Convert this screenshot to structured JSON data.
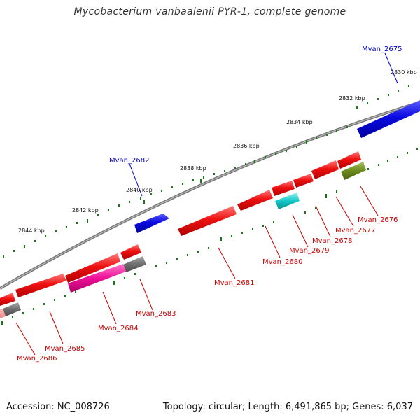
{
  "title": "Mycobacterium vanbaalenii PYR-1, complete genome",
  "footer": {
    "accession": "Accession: NC_008726",
    "topology": "Topology: circular; Length: 6,491,865 bp; Genes: 6,037"
  },
  "colors": {
    "backbone": "#8a8a8a",
    "tick": "#1a7a1a",
    "red": "#ee1111",
    "blue": "#0a0ae0",
    "cyan": "#14c8c8",
    "olive": "#6b8a1e",
    "gray": "#6e6e6e",
    "pink": "#ee1199",
    "label_red": "#cc0000",
    "label_blue": "#0000cc"
  },
  "kbp_labels": [
    "2830 kbp",
    "2832 kbp",
    "2834 kbp",
    "2836 kbp",
    "2838 kbp",
    "2840 kbp",
    "2842 kbp",
    "2844 kbp"
  ],
  "genes": [
    {
      "name": "Mvan_2675",
      "color": "blue"
    },
    {
      "name": "Mvan_2676",
      "color": "red"
    },
    {
      "name": "Mvan_2677",
      "color": "red"
    },
    {
      "name": "Mvan_2678",
      "color": "red"
    },
    {
      "name": "Mvan_2679",
      "color": "red"
    },
    {
      "name": "Mvan_2680",
      "color": "red"
    },
    {
      "name": "Mvan_2681",
      "color": "red"
    },
    {
      "name": "Mvan_2682",
      "color": "blue"
    },
    {
      "name": "Mvan_2683",
      "color": "red"
    },
    {
      "name": "Mvan_2684",
      "color": "red"
    },
    {
      "name": "Mvan_2685",
      "color": "red"
    },
    {
      "name": "Mvan_2686",
      "color": "red"
    }
  ]
}
